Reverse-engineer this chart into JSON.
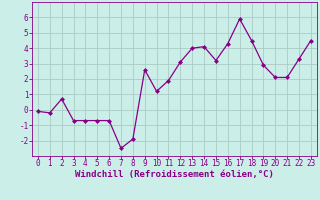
{
  "x": [
    0,
    1,
    2,
    3,
    4,
    5,
    6,
    7,
    8,
    9,
    10,
    11,
    12,
    13,
    14,
    15,
    16,
    17,
    18,
    19,
    20,
    21,
    22,
    23
  ],
  "y": [
    -0.1,
    -0.2,
    0.7,
    -0.7,
    -0.7,
    -0.7,
    -0.7,
    -2.5,
    -1.9,
    2.6,
    1.2,
    1.9,
    3.1,
    4.0,
    4.1,
    3.2,
    4.3,
    5.9,
    4.5,
    2.9,
    2.1,
    2.1,
    3.3,
    4.5
  ],
  "line_color": "#880088",
  "marker": "D",
  "markersize": 2.0,
  "linewidth": 0.9,
  "bg_color": "#cceee8",
  "grid_color": "#aaccc4",
  "xlabel": "Windchill (Refroidissement éolien,°C)",
  "xlabel_color": "#880088",
  "tick_color": "#880088",
  "ylim": [
    -3,
    7
  ],
  "yticks": [
    -2,
    -1,
    0,
    1,
    2,
    3,
    4,
    5,
    6
  ],
  "xlim": [
    -0.5,
    23.5
  ],
  "xticks": [
    0,
    1,
    2,
    3,
    4,
    5,
    6,
    7,
    8,
    9,
    10,
    11,
    12,
    13,
    14,
    15,
    16,
    17,
    18,
    19,
    20,
    21,
    22,
    23
  ],
  "tick_fontsize": 5.5,
  "ylabel_fontsize": 6.0,
  "xlabel_fontsize": 6.5
}
